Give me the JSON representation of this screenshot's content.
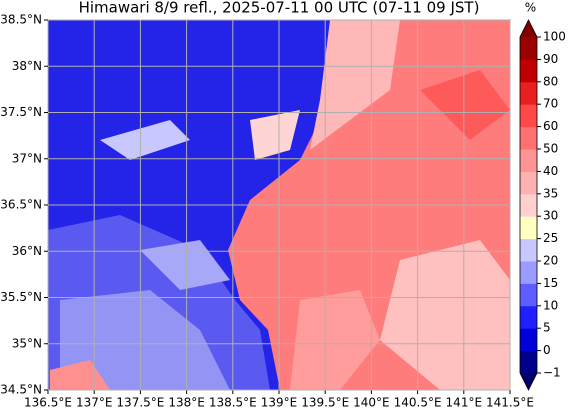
{
  "title": "Himawari 8/9 refl., 2025-07-11 00 UTC (07-11 09 JST)",
  "map": {
    "lon_range": [
      136.5,
      141.5
    ],
    "lat_range": [
      34.5,
      38.5
    ],
    "lon_ticks": [
      {
        "value": 136.5,
        "label": "136.5°E"
      },
      {
        "value": 137,
        "label": "137°E"
      },
      {
        "value": 137.5,
        "label": "137.5°E"
      },
      {
        "value": 138,
        "label": "138°E"
      },
      {
        "value": 138.5,
        "label": "138.5°E"
      },
      {
        "value": 139,
        "label": "139°E"
      },
      {
        "value": 139.5,
        "label": "139.5°E"
      },
      {
        "value": 140,
        "label": "140°E"
      },
      {
        "value": 140.5,
        "label": "140.5°E"
      },
      {
        "value": 141,
        "label": "141°E"
      },
      {
        "value": 141.5,
        "label": "141.5°E"
      }
    ],
    "lat_ticks": [
      {
        "value": 34.5,
        "label": "34.5°N"
      },
      {
        "value": 35,
        "label": "35°N"
      },
      {
        "value": 35.5,
        "label": "35.5°N"
      },
      {
        "value": 36,
        "label": "36°N"
      },
      {
        "value": 36.5,
        "label": "36.5°N"
      },
      {
        "value": 37,
        "label": "37°N"
      },
      {
        "value": 37.5,
        "label": "37.5°N"
      },
      {
        "value": 38,
        "label": "38°N"
      },
      {
        "value": 38.5,
        "label": "38.5°N"
      }
    ],
    "grid": true
  },
  "colorbar": {
    "unit": "%",
    "levels": [
      {
        "value": -1,
        "label": "−1"
      },
      0,
      5,
      10,
      15,
      20,
      25,
      30,
      35,
      40,
      50,
      60,
      70,
      80,
      90,
      100
    ],
    "colors": [
      "#00008b",
      "#0000d8",
      "#2020ff",
      "#5c5cff",
      "#9a9aff",
      "#c8c8ff",
      "#ffffc0",
      "#ffd0d0",
      "#ffb0b0",
      "#ff9494",
      "#ff7070",
      "#ff4848",
      "#e82020",
      "#c00000",
      "#9a0000"
    ],
    "extend_colors": [
      "#00006b",
      "#800000"
    ]
  }
}
